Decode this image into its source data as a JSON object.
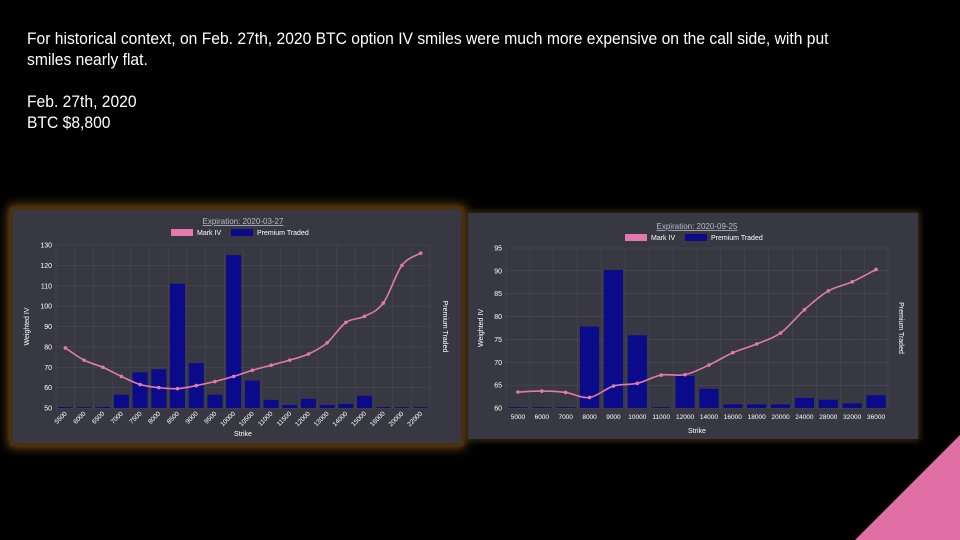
{
  "intro": {
    "line1": "For historical context, on Feb. 27th, 2020 BTC option IV smiles were much more expensive on the call side, with put smiles nearly flat.",
    "date": "Feb. 27th, 2020",
    "price": "BTC $8,800"
  },
  "colors": {
    "mark_iv": "#e27aae",
    "premium": "#0a0a8a",
    "panel_bg": "#383843",
    "grid": "#4c4c58",
    "corner": "#e06fa6"
  },
  "chart_data": [
    {
      "type": "bar",
      "title": "Expiration: 2020-03-27",
      "xlabel": "Strike",
      "ylabel": "Weighted IV",
      "y2label": "Premium Traded",
      "ylim": [
        50,
        130
      ],
      "yticks": [
        50,
        60,
        70,
        80,
        90,
        100,
        110,
        120,
        130
      ],
      "legend": [
        "Mark IV",
        "Premium Traded"
      ],
      "legend_placement": "top",
      "grid": true,
      "categories": [
        "5500",
        "6000",
        "6500",
        "7000",
        "7500",
        "8000",
        "8500",
        "9000",
        "9500",
        "10000",
        "10500",
        "11000",
        "11500",
        "12000",
        "13000",
        "14000",
        "15000",
        "16000",
        "20000",
        "22000"
      ],
      "series": [
        {
          "name": "Mark IV",
          "type": "line",
          "values": [
            79.5,
            73.5,
            70,
            65.5,
            61.5,
            60,
            59.5,
            61,
            63,
            65.5,
            68.5,
            71,
            73.5,
            76.5,
            82,
            92,
            95,
            101.5,
            120,
            126
          ]
        },
        {
          "name": "Premium Traded",
          "type": "bar",
          "values": [
            50.5,
            50,
            50.5,
            56.5,
            67.5,
            69,
            111,
            72,
            56.5,
            125,
            63.5,
            54,
            51.5,
            54.5,
            51.5,
            52,
            56,
            50.5,
            50,
            50
          ]
        }
      ]
    },
    {
      "type": "bar",
      "title": "Expiration: 2020-09-25",
      "xlabel": "Strike",
      "ylabel": "Weighted IV",
      "y2label": "Premium Traded",
      "ylim": [
        60,
        95
      ],
      "yticks": [
        60,
        65,
        70,
        75,
        80,
        85,
        90,
        95
      ],
      "legend": [
        "Mark IV",
        "Premium Traded"
      ],
      "legend_placement": "top",
      "grid": true,
      "categories": [
        "5000",
        "6000",
        "7000",
        "8000",
        "9000",
        "10000",
        "11000",
        "12000",
        "14000",
        "16000",
        "18000",
        "20000",
        "24000",
        "28000",
        "32000",
        "36000"
      ],
      "series": [
        {
          "name": "Mark IV",
          "type": "line",
          "values": [
            63.5,
            63.7,
            63.4,
            62.3,
            64.8,
            65.4,
            67.2,
            67.3,
            69.4,
            72.1,
            74.0,
            76.4,
            81.5,
            85.6,
            87.6,
            90.3
          ]
        },
        {
          "name": "Premium Traded",
          "type": "bar",
          "values": [
            60,
            60,
            60,
            77.8,
            90.2,
            75.9,
            60,
            67,
            64.2,
            60.8,
            60.8,
            60.8,
            62.2,
            61.8,
            61,
            62.8
          ]
        }
      ]
    }
  ]
}
